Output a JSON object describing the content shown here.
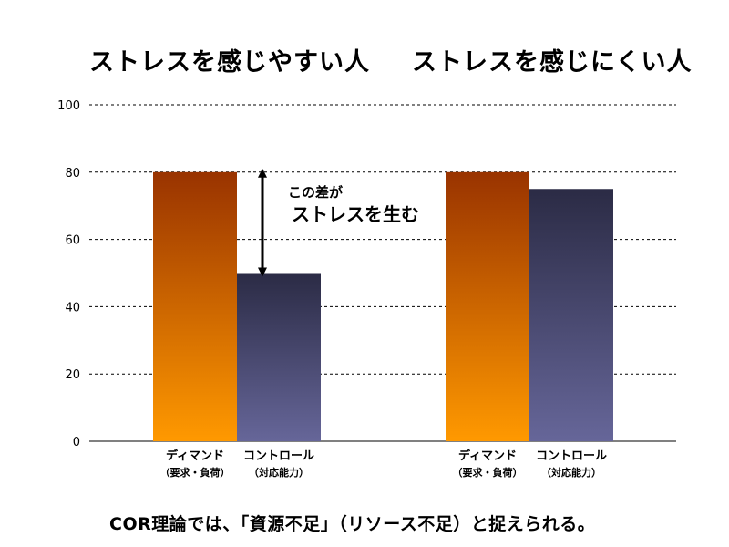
{
  "group_titles": {
    "left": "ストレスを感じやすい人",
    "right": "ストレスを感じにくい人"
  },
  "annotation": {
    "line1": "この差が",
    "line2": "ストレスを生む"
  },
  "footer": "COR理論では、「資源不足」（リソース不足）と捉えられる。",
  "colors": {
    "demand_top": "#993300",
    "demand_bottom": "#ff9900",
    "control_top": "#2b2b45",
    "control_bottom": "#666699",
    "grid": "#000000"
  },
  "chart_data": {
    "type": "bar",
    "ylim": [
      0,
      100
    ],
    "yticks": [
      0,
      20,
      40,
      60,
      80,
      100
    ],
    "grid": true,
    "groups": [
      {
        "title": "ストレスを感じやすい人",
        "bars": [
          {
            "label": "ディマンド",
            "sublabel": "（要求・負荷）",
            "value": 80,
            "kind": "demand"
          },
          {
            "label": "コントロール",
            "sublabel": "（対応能力）",
            "value": 50,
            "kind": "control"
          }
        ]
      },
      {
        "title": "ストレスを感じにくい人",
        "bars": [
          {
            "label": "ディマンド",
            "sublabel": "（要求・負荷）",
            "value": 80,
            "kind": "demand"
          },
          {
            "label": "コントロール",
            "sublabel": "（対応能力）",
            "value": 75,
            "kind": "control"
          }
        ]
      }
    ]
  }
}
